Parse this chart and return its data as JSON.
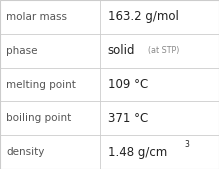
{
  "rows": [
    {
      "label": "molar mass",
      "value": "163.2 g/mol",
      "superscript": null,
      "small_text": null
    },
    {
      "label": "phase",
      "value": "solid",
      "superscript": null,
      "small_text": "(at STP)"
    },
    {
      "label": "melting point",
      "value": "109 °C",
      "superscript": null,
      "small_text": null
    },
    {
      "label": "boiling point",
      "value": "371 °C",
      "superscript": null,
      "small_text": null
    },
    {
      "label": "density",
      "value": "1.48 g/cm",
      "superscript": "3",
      "small_text": null
    }
  ],
  "bg_color": "#ffffff",
  "border_color": "#cccccc",
  "label_color": "#555555",
  "value_color": "#222222",
  "small_color": "#888888",
  "label_fontsize": 7.5,
  "value_fontsize": 8.5,
  "small_fontsize": 5.8,
  "super_fontsize": 5.5,
  "col_split": 0.455
}
